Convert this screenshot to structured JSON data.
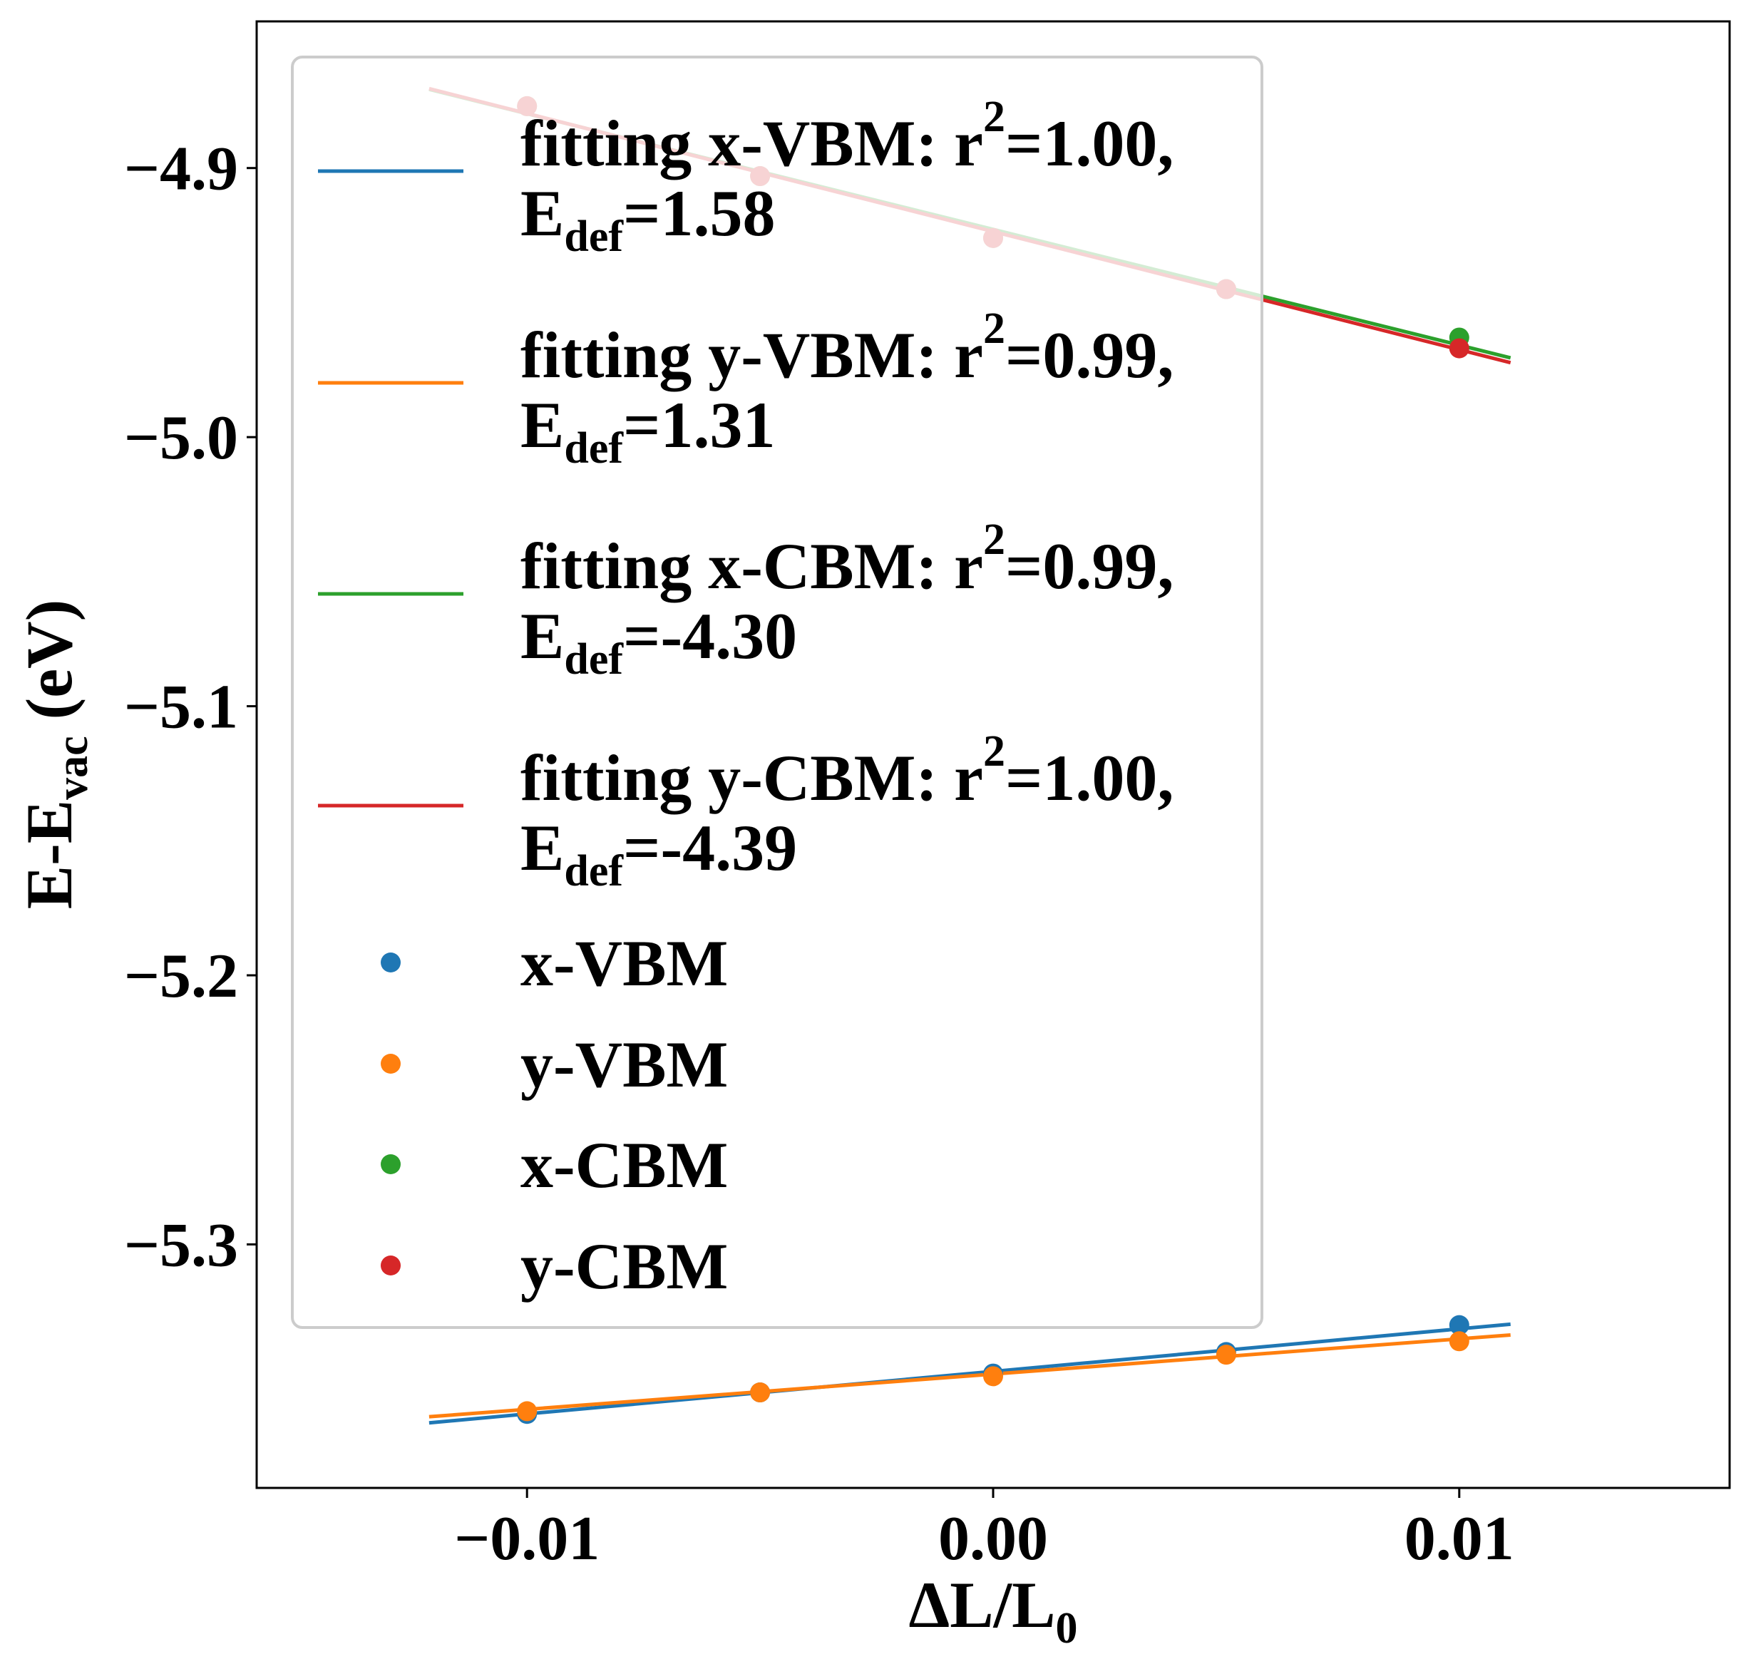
{
  "chart_data": {
    "type": "scatter",
    "xlabel": "ΔL/L",
    "xlabel_subscript": "0",
    "ylabel": "E-E",
    "ylabel_subscript": "vac",
    "ylabel_suffix": " (eV)",
    "xlim": [
      -0.0158,
      0.0158
    ],
    "ylim": [
      -5.3905,
      -4.8455
    ],
    "x_ticks": [
      -0.01,
      0.0,
      0.01
    ],
    "x_tick_labels": [
      "−0.01",
      "0.00",
      "0.01"
    ],
    "y_ticks": [
      -4.9,
      -5.0,
      -5.1,
      -5.2,
      -5.3
    ],
    "y_tick_labels": [
      "−4.9",
      "−5.0",
      "−5.1",
      "−5.2",
      "−5.3"
    ],
    "grid": false,
    "legend_placement": "upper-left",
    "fit_x_range": [
      -0.0121,
      0.0111
    ],
    "series": [
      {
        "name": "x-VBM",
        "color": "#1f77b4",
        "x": [
          -0.01,
          -0.005,
          0.0,
          0.005,
          0.01
        ],
        "y": [
          -5.363,
          -5.355,
          -5.348,
          -5.34,
          -5.33
        ],
        "fit": {
          "label_line1": "fitting x-VBM: r",
          "label_sup": "2",
          "label_line1_end": "=1.00,",
          "label_line2": "E",
          "label_sub": "def",
          "label_line2_end": "=1.58",
          "slope": 1.58,
          "intercept": -5.3472
        }
      },
      {
        "name": "y-VBM",
        "color": "#ff7f0e",
        "x": [
          -0.01,
          -0.005,
          0.0,
          0.005,
          0.01
        ],
        "y": [
          -5.362,
          -5.355,
          -5.349,
          -5.341,
          -5.336
        ],
        "fit": {
          "label_line1": "fitting y-VBM: r",
          "label_sup": "2",
          "label_line1_end": "=0.99,",
          "label_line2": "E",
          "label_sub": "def",
          "label_line2_end": "=1.31",
          "slope": 1.31,
          "intercept": -5.3482
        }
      },
      {
        "name": "x-CBM",
        "color": "#2ca02c",
        "x": [
          -0.01,
          -0.005,
          0.0,
          0.005,
          0.01
        ],
        "y": [
          -4.877,
          -4.903,
          -4.926,
          -4.945,
          -4.963
        ],
        "fit": {
          "label_line1": "fitting x-CBM: r",
          "label_sup": "2",
          "label_line1_end": "=0.99,",
          "label_line2": "E",
          "label_sub": "def",
          "label_line2_end": "=-4.30",
          "slope": -4.3,
          "intercept": -4.9228
        }
      },
      {
        "name": "y-CBM",
        "color": "#d62728",
        "x": [
          -0.01,
          -0.005,
          0.0,
          0.005,
          0.01
        ],
        "y": [
          -4.877,
          -4.903,
          -4.926,
          -4.945,
          -4.967
        ],
        "fit": {
          "label_line1": "fitting y-CBM: r",
          "label_sup": "2",
          "label_line1_end": "=1.00,",
          "label_line2": "E",
          "label_sub": "def",
          "label_line2_end": "=-4.39",
          "slope": -4.39,
          "intercept": -4.9236
        }
      }
    ]
  }
}
